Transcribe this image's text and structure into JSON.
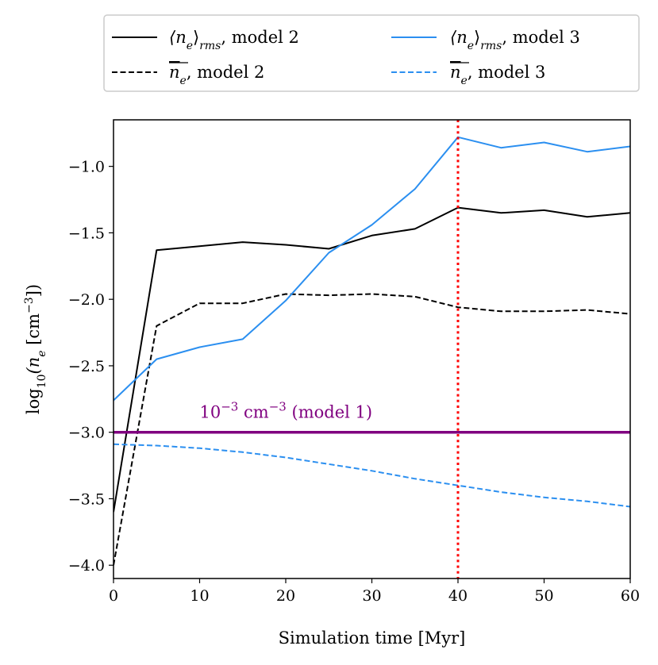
{
  "chart_data": {
    "type": "line",
    "xlabel": "Simulation time [Myr]",
    "ylabel": "log10(n_e [cm^-3])",
    "ylabel_parts": {
      "prefix": "log",
      "sub": "10",
      "mid": "(n",
      "sub2": "e",
      "unit": " [cm",
      "sup": "−3",
      "suffix": "])"
    },
    "xlim": [
      0,
      60
    ],
    "ylim": [
      -4.1,
      -0.65
    ],
    "xticks": [
      0,
      10,
      20,
      30,
      40,
      50,
      60
    ],
    "xtick_labels": [
      "0",
      "10",
      "20",
      "30",
      "40",
      "50",
      "60"
    ],
    "yticks": [
      -4.0,
      -3.5,
      -3.0,
      -2.5,
      -2.0,
      -1.5,
      -1.0
    ],
    "ytick_labels": [
      "−4.0",
      "−3.5",
      "−3.0",
      "−2.5",
      "−2.0",
      "−1.5",
      "−1.0"
    ],
    "grid": false,
    "legend_position": "top, outside plot",
    "series": [
      {
        "name": "⟨n_e⟩_rms, model 2",
        "legend": {
          "pre": "⟨n",
          "sub": "e",
          "mid": "⟩",
          "sub2": "rms",
          "post": ", model 2"
        },
        "color": "#000000",
        "style": "solid",
        "x": [
          0,
          5,
          10,
          15,
          20,
          25,
          30,
          35,
          40,
          45,
          50,
          55,
          60
        ],
        "y": [
          -3.6,
          -1.63,
          -1.6,
          -1.57,
          -1.59,
          -1.62,
          -1.52,
          -1.47,
          -1.31,
          -1.35,
          -1.33,
          -1.38,
          -1.35
        ]
      },
      {
        "name": "n̄_e, model 2",
        "legend": {
          "pre": "n",
          "sub": "e",
          "post": ", model 2"
        },
        "color": "#000000",
        "style": "dashed",
        "x": [
          0,
          5,
          10,
          15,
          20,
          25,
          30,
          35,
          40,
          45,
          50,
          55,
          60
        ],
        "y": [
          -4.0,
          -2.2,
          -2.03,
          -2.03,
          -1.96,
          -1.97,
          -1.96,
          -1.98,
          -2.06,
          -2.09,
          -2.09,
          -2.08,
          -2.11
        ]
      },
      {
        "name": "⟨n_e⟩_rms, model 3",
        "legend": {
          "pre": "⟨n",
          "sub": "e",
          "mid": "⟩",
          "sub2": "rms",
          "post": ", model 3"
        },
        "color": "#2b8ff0",
        "style": "solid",
        "x": [
          0,
          5,
          10,
          15,
          20,
          25,
          30,
          35,
          40,
          45,
          50,
          55,
          60
        ],
        "y": [
          -2.76,
          -2.45,
          -2.36,
          -2.3,
          -2.01,
          -1.65,
          -1.44,
          -1.17,
          -0.78,
          -0.86,
          -0.82,
          -0.89,
          -0.85
        ]
      },
      {
        "name": "n̄_e, model 3",
        "legend": {
          "pre": "n",
          "sub": "e",
          "post": ", model 3"
        },
        "color": "#2b8ff0",
        "style": "dashed",
        "x": [
          0,
          5,
          10,
          15,
          20,
          25,
          30,
          35,
          40,
          45,
          50,
          55,
          60
        ],
        "y": [
          -3.09,
          -3.1,
          -3.12,
          -3.15,
          -3.19,
          -3.24,
          -3.29,
          -3.35,
          -3.4,
          -3.45,
          -3.49,
          -3.52,
          -3.56
        ]
      }
    ],
    "hline": {
      "y": -3.0,
      "color": "#800080",
      "label": "10−3 cm−3 (model 1)",
      "label_parts": {
        "base": "10",
        "sup": "−3",
        "mid": " cm",
        "sup2": "−3",
        "post": " (model 1)"
      },
      "label_x": 10,
      "label_y": -2.85
    },
    "vline": {
      "x": 40,
      "color": "#ff0000",
      "style": "dotted"
    }
  }
}
